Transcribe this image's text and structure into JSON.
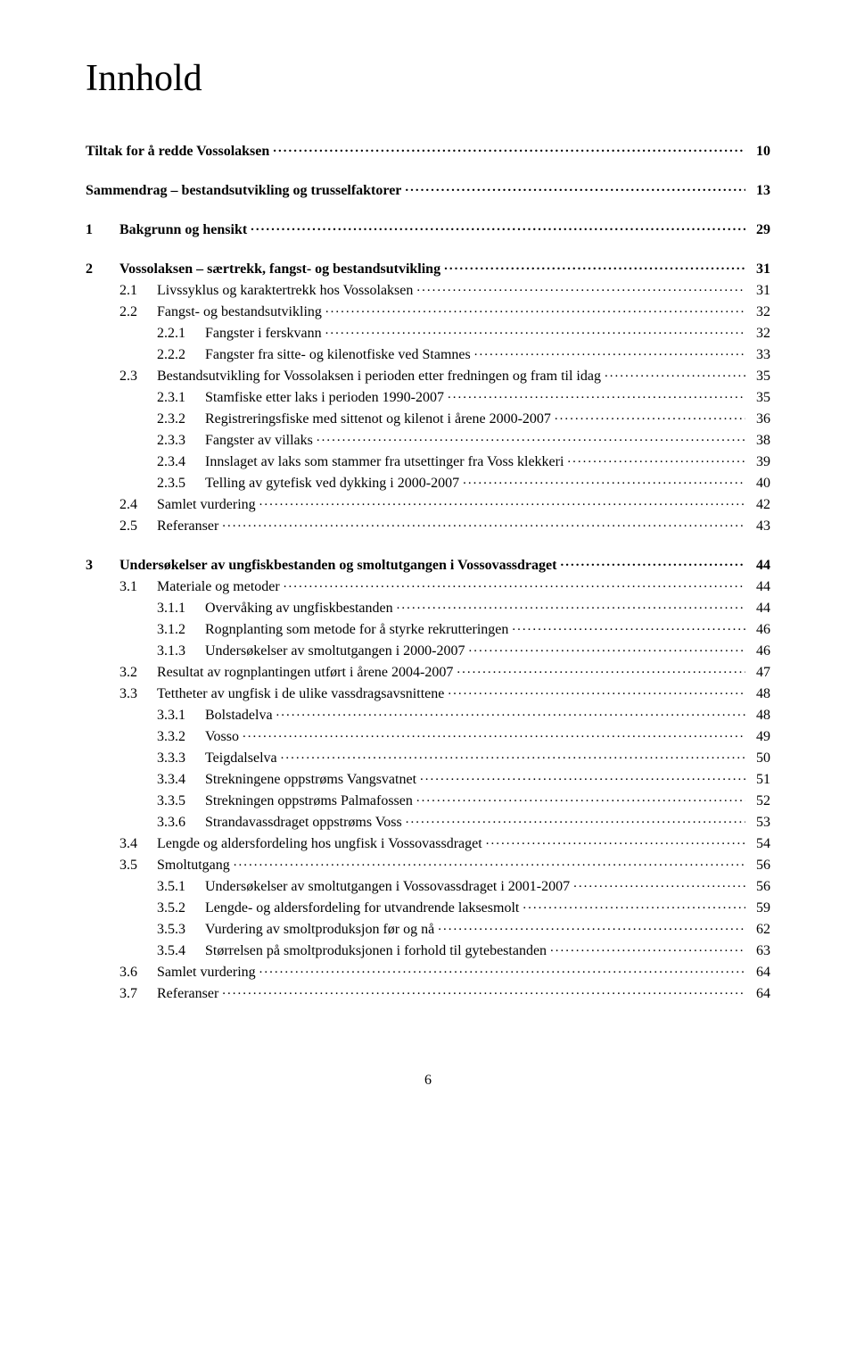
{
  "title": "Innhold",
  "page_number": "6",
  "toc": [
    {
      "level": 0,
      "num": "",
      "label": "Tiltak for å redde Vossolaksen",
      "page": "10",
      "gap_after": true
    },
    {
      "level": 0,
      "num": "",
      "label": "Sammendrag – bestandsutvikling og trusselfaktorer",
      "page": "13",
      "gap_after": true
    },
    {
      "level": 0,
      "num": "1",
      "label": "Bakgrunn og hensikt",
      "page": "29",
      "gap_after": true
    },
    {
      "level": 0,
      "num": "2",
      "label": "Vossolaksen – særtrekk, fangst- og bestandsutvikling",
      "page": "31"
    },
    {
      "level": 1,
      "num": "2.1",
      "label": "Livssyklus og karaktertrekk hos Vossolaksen",
      "page": "31"
    },
    {
      "level": 1,
      "num": "2.2",
      "label": "Fangst- og bestandsutvikling",
      "page": "32"
    },
    {
      "level": 2,
      "num": "2.2.1",
      "label": "Fangster i ferskvann",
      "page": "32"
    },
    {
      "level": 2,
      "num": "2.2.2",
      "label": "Fangster fra sitte- og kilenotfiske ved Stamnes",
      "page": "33"
    },
    {
      "level": 1,
      "num": "2.3",
      "label": "Bestandsutvikling for Vossolaksen i perioden etter fredningen og fram til idag",
      "page": "35"
    },
    {
      "level": 2,
      "num": "2.3.1",
      "label": "Stamfiske etter laks i perioden 1990-2007",
      "page": "35"
    },
    {
      "level": 2,
      "num": "2.3.2",
      "label": "Registreringsfiske med sittenot og kilenot i årene 2000-2007",
      "page": "36"
    },
    {
      "level": 2,
      "num": "2.3.3",
      "label": "Fangster av villaks",
      "page": "38"
    },
    {
      "level": 2,
      "num": "2.3.4",
      "label": "Innslaget av laks som stammer fra utsettinger fra Voss klekkeri",
      "page": "39"
    },
    {
      "level": 2,
      "num": "2.3.5",
      "label": "Telling av gytefisk ved dykking i 2000-2007",
      "page": "40"
    },
    {
      "level": 1,
      "num": "2.4",
      "label": "Samlet vurdering",
      "page": "42"
    },
    {
      "level": 1,
      "num": "2.5",
      "label": "Referanser",
      "page": "43",
      "gap_after": true
    },
    {
      "level": 0,
      "num": "3",
      "label": "Undersøkelser av ungfiskbestanden og smoltutgangen i Vossovassdraget",
      "page": "44"
    },
    {
      "level": 1,
      "num": "3.1",
      "label": "Materiale og metoder",
      "page": "44"
    },
    {
      "level": 2,
      "num": "3.1.1",
      "label": "Overvåking av ungfiskbestanden",
      "page": "44"
    },
    {
      "level": 2,
      "num": "3.1.2",
      "label": "Rognplanting som metode for å styrke rekrutteringen",
      "page": "46"
    },
    {
      "level": 2,
      "num": "3.1.3",
      "label": "Undersøkelser av smoltutgangen i 2000-2007",
      "page": "46"
    },
    {
      "level": 1,
      "num": "3.2",
      "label": "Resultat av rognplantingen utført i årene 2004-2007",
      "page": "47"
    },
    {
      "level": 1,
      "num": "3.3",
      "label": "Tettheter av ungfisk i de ulike vassdragsavsnittene",
      "page": "48"
    },
    {
      "level": 2,
      "num": "3.3.1",
      "label": "Bolstadelva",
      "page": "48"
    },
    {
      "level": 2,
      "num": "3.3.2",
      "label": "Vosso",
      "page": "49"
    },
    {
      "level": 2,
      "num": "3.3.3",
      "label": "Teigdalselva",
      "page": "50"
    },
    {
      "level": 2,
      "num": "3.3.4",
      "label": "Strekningene oppstrøms Vangsvatnet",
      "page": "51"
    },
    {
      "level": 2,
      "num": "3.3.5",
      "label": "Strekningen oppstrøms Palmafossen",
      "page": "52"
    },
    {
      "level": 2,
      "num": "3.3.6",
      "label": "Strandavassdraget oppstrøms Voss",
      "page": "53"
    },
    {
      "level": 1,
      "num": "3.4",
      "label": "Lengde og aldersfordeling hos ungfisk i Vossovassdraget",
      "page": "54"
    },
    {
      "level": 1,
      "num": "3.5",
      "label": "Smoltutgang",
      "page": "56"
    },
    {
      "level": 2,
      "num": "3.5.1",
      "label": "Undersøkelser av smoltutgangen i Vossovassdraget i 2001-2007",
      "page": "56"
    },
    {
      "level": 2,
      "num": "3.5.2",
      "label": "Lengde- og aldersfordeling for utvandrende laksesmolt",
      "page": "59"
    },
    {
      "level": 2,
      "num": "3.5.3",
      "label": "Vurdering av smoltproduksjon før og nå",
      "page": "62"
    },
    {
      "level": 2,
      "num": "3.5.4",
      "label": "Størrelsen på smoltproduksjonen i forhold til gytebestanden",
      "page": "63"
    },
    {
      "level": 1,
      "num": "3.6",
      "label": "Samlet vurdering",
      "page": "64"
    },
    {
      "level": 1,
      "num": "3.7",
      "label": "Referanser",
      "page": "64"
    }
  ]
}
